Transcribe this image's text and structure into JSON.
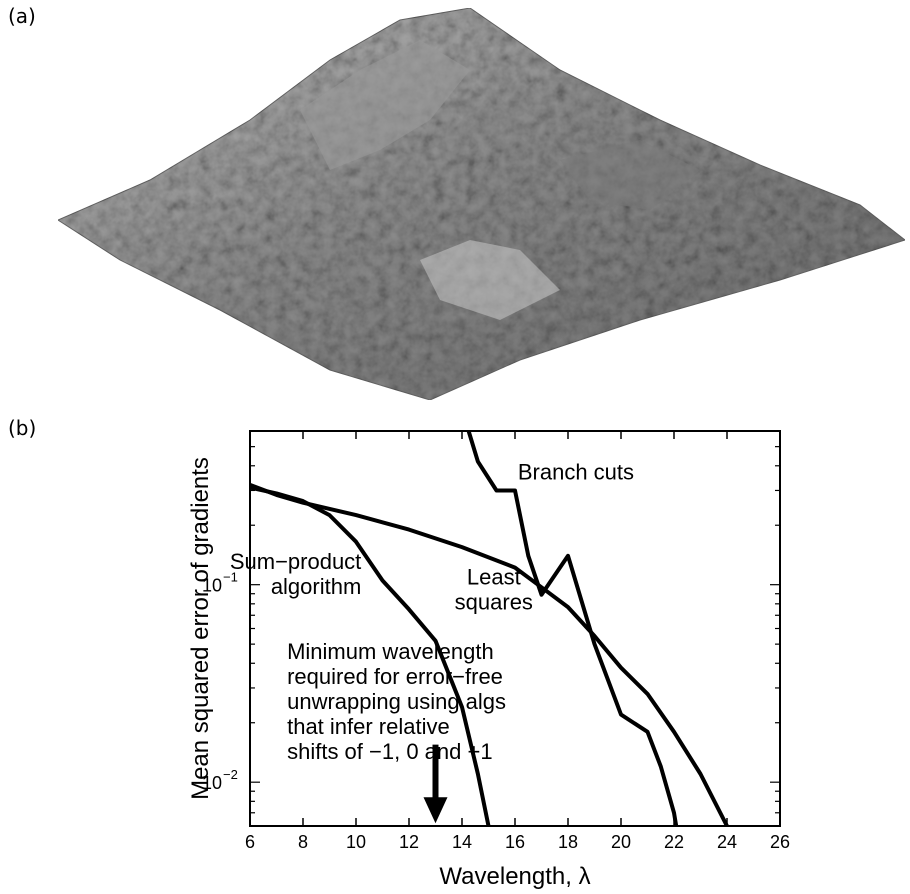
{
  "panels": {
    "a_label": "(a)",
    "b_label": "(b)"
  },
  "surface_plot": {
    "description_color": "#8a8a8a"
  },
  "chart_data": {
    "type": "line",
    "xlabel": "Wavelength, λ",
    "ylabel": "Mean squared error of gradients",
    "xscale": "linear",
    "yscale": "log",
    "xlim": [
      6,
      26
    ],
    "ylim": [
      0.006,
      0.6
    ],
    "xticks": [
      6,
      8,
      10,
      12,
      14,
      16,
      18,
      20,
      22,
      24,
      26
    ],
    "yticks": [
      {
        "value": 0.1,
        "label": "10",
        "exp": "−1"
      },
      {
        "value": 0.01,
        "label": "10",
        "exp": "−2"
      }
    ],
    "grid": false,
    "legend": "none",
    "series": [
      {
        "id": "sum-product",
        "x": [
          6,
          7,
          8,
          9,
          10,
          11,
          12,
          13,
          14,
          14.6,
          15,
          15.4
        ],
        "y": [
          0.31,
          0.29,
          0.265,
          0.225,
          0.165,
          0.105,
          0.075,
          0.052,
          0.024,
          0.011,
          0.006,
          0.0045
        ]
      },
      {
        "id": "least-squares",
        "x": [
          6,
          7,
          8,
          10,
          12,
          14,
          16,
          17,
          18,
          19,
          20,
          21,
          22,
          23,
          24
        ],
        "y": [
          0.32,
          0.285,
          0.26,
          0.225,
          0.19,
          0.155,
          0.122,
          0.097,
          0.077,
          0.055,
          0.038,
          0.028,
          0.018,
          0.011,
          0.006
        ]
      },
      {
        "id": "branch-cuts",
        "x": [
          14.1,
          14.6,
          15.3,
          16,
          16.5,
          17,
          18,
          19,
          20,
          21,
          21.5,
          22,
          22.3
        ],
        "y": [
          0.7,
          0.42,
          0.3,
          0.3,
          0.14,
          0.089,
          0.14,
          0.05,
          0.022,
          0.018,
          0.012,
          0.007,
          0.004
        ]
      }
    ],
    "annotations": [
      {
        "id": "branch-cuts-label",
        "lines": [
          "Branch cuts"
        ],
        "x": 18.3,
        "y": 0.34,
        "anchor": "middle"
      },
      {
        "id": "sum-product-label",
        "lines": [
          "Sum−product",
          "algorithm"
        ],
        "x": 10.2,
        "y": 0.12,
        "anchor": "end"
      },
      {
        "id": "least-squares-label",
        "lines": [
          "Least",
          "squares"
        ],
        "x": 15.2,
        "y": 0.1,
        "anchor": "middle"
      },
      {
        "id": "min-wavelength-note",
        "lines": [
          "Minimum wavelength",
          "required for error−free",
          "unwrapping using algs",
          "that infer relative",
          "shifts of −1, 0 and +1"
        ],
        "x": 7.4,
        "y": 0.042,
        "anchor": "start"
      }
    ],
    "arrow": {
      "x": 13,
      "y_from": 0.0155,
      "y_to": 0.0062
    }
  }
}
